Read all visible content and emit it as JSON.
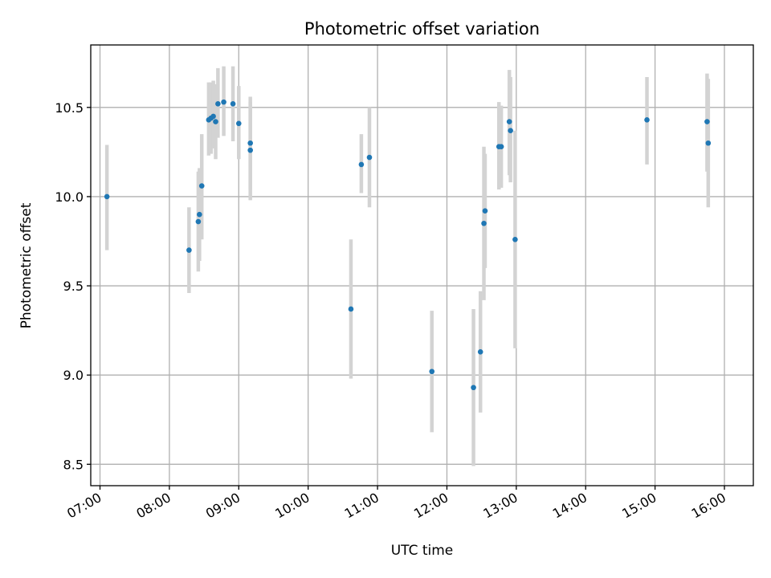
{
  "chart_data": {
    "type": "scatter",
    "title": "Photometric offset variation",
    "xlabel": "UTC time",
    "ylabel": "Photometric offset",
    "xlim": [
      "06:52",
      "16:25"
    ],
    "ylim": [
      8.38,
      10.85
    ],
    "yticks": [
      8.5,
      9.0,
      9.5,
      10.0,
      10.5
    ],
    "ytick_labels": [
      "8.5",
      "9.0",
      "9.5",
      "10.0",
      "10.5"
    ],
    "xticks": [
      "07:00",
      "08:00",
      "09:00",
      "10:00",
      "11:00",
      "12:00",
      "13:00",
      "14:00",
      "15:00",
      "16:00"
    ],
    "grid": true,
    "marker_color": "#1f77b4",
    "errorbar_color": "#d3d3d3",
    "points": [
      {
        "t": "07:06",
        "y": 10.0,
        "lo": 9.7,
        "hi": 10.29
      },
      {
        "t": "08:17",
        "y": 9.7,
        "lo": 9.46,
        "hi": 9.94
      },
      {
        "t": "08:25",
        "y": 9.86,
        "lo": 9.58,
        "hi": 10.14
      },
      {
        "t": "08:26",
        "y": 9.9,
        "lo": 9.64,
        "hi": 10.16
      },
      {
        "t": "08:28",
        "y": 10.06,
        "lo": 9.76,
        "hi": 10.35
      },
      {
        "t": "08:34",
        "y": 10.43,
        "lo": 10.23,
        "hi": 10.64
      },
      {
        "t": "08:36",
        "y": 10.44,
        "lo": 10.24,
        "hi": 10.64
      },
      {
        "t": "08:38",
        "y": 10.45,
        "lo": 10.27,
        "hi": 10.65
      },
      {
        "t": "08:40",
        "y": 10.42,
        "lo": 10.21,
        "hi": 10.63
      },
      {
        "t": "08:42",
        "y": 10.52,
        "lo": 10.33,
        "hi": 10.72
      },
      {
        "t": "08:47",
        "y": 10.53,
        "lo": 10.34,
        "hi": 10.73
      },
      {
        "t": "08:55",
        "y": 10.52,
        "lo": 10.31,
        "hi": 10.73
      },
      {
        "t": "09:00",
        "y": 10.41,
        "lo": 10.21,
        "hi": 10.62
      },
      {
        "t": "09:10",
        "y": 10.3,
        "lo": 10.04,
        "hi": 10.56
      },
      {
        "t": "09:10",
        "y": 10.26,
        "lo": 9.98,
        "hi": 10.53
      },
      {
        "t": "10:37",
        "y": 9.37,
        "lo": 8.98,
        "hi": 9.76
      },
      {
        "t": "10:46",
        "y": 10.18,
        "lo": 10.02,
        "hi": 10.35
      },
      {
        "t": "10:53",
        "y": 10.22,
        "lo": 9.94,
        "hi": 10.5
      },
      {
        "t": "11:47",
        "y": 9.02,
        "lo": 8.68,
        "hi": 9.36
      },
      {
        "t": "12:23",
        "y": 8.93,
        "lo": 8.49,
        "hi": 9.37
      },
      {
        "t": "12:29",
        "y": 9.13,
        "lo": 8.79,
        "hi": 9.47
      },
      {
        "t": "12:32",
        "y": 9.85,
        "lo": 9.42,
        "hi": 10.28
      },
      {
        "t": "12:33",
        "y": 9.92,
        "lo": 9.6,
        "hi": 10.24
      },
      {
        "t": "12:45",
        "y": 10.28,
        "lo": 10.04,
        "hi": 10.53
      },
      {
        "t": "12:47",
        "y": 10.28,
        "lo": 10.05,
        "hi": 10.51
      },
      {
        "t": "12:54",
        "y": 10.42,
        "lo": 10.12,
        "hi": 10.71
      },
      {
        "t": "12:55",
        "y": 10.37,
        "lo": 10.08,
        "hi": 10.67
      },
      {
        "t": "12:59",
        "y": 9.76,
        "lo": 9.15,
        "hi": 10.37
      },
      {
        "t": "14:53",
        "y": 10.43,
        "lo": 10.18,
        "hi": 10.67
      },
      {
        "t": "15:45",
        "y": 10.42,
        "lo": 10.14,
        "hi": 10.69
      },
      {
        "t": "15:46",
        "y": 10.3,
        "lo": 9.94,
        "hi": 10.66
      }
    ]
  }
}
